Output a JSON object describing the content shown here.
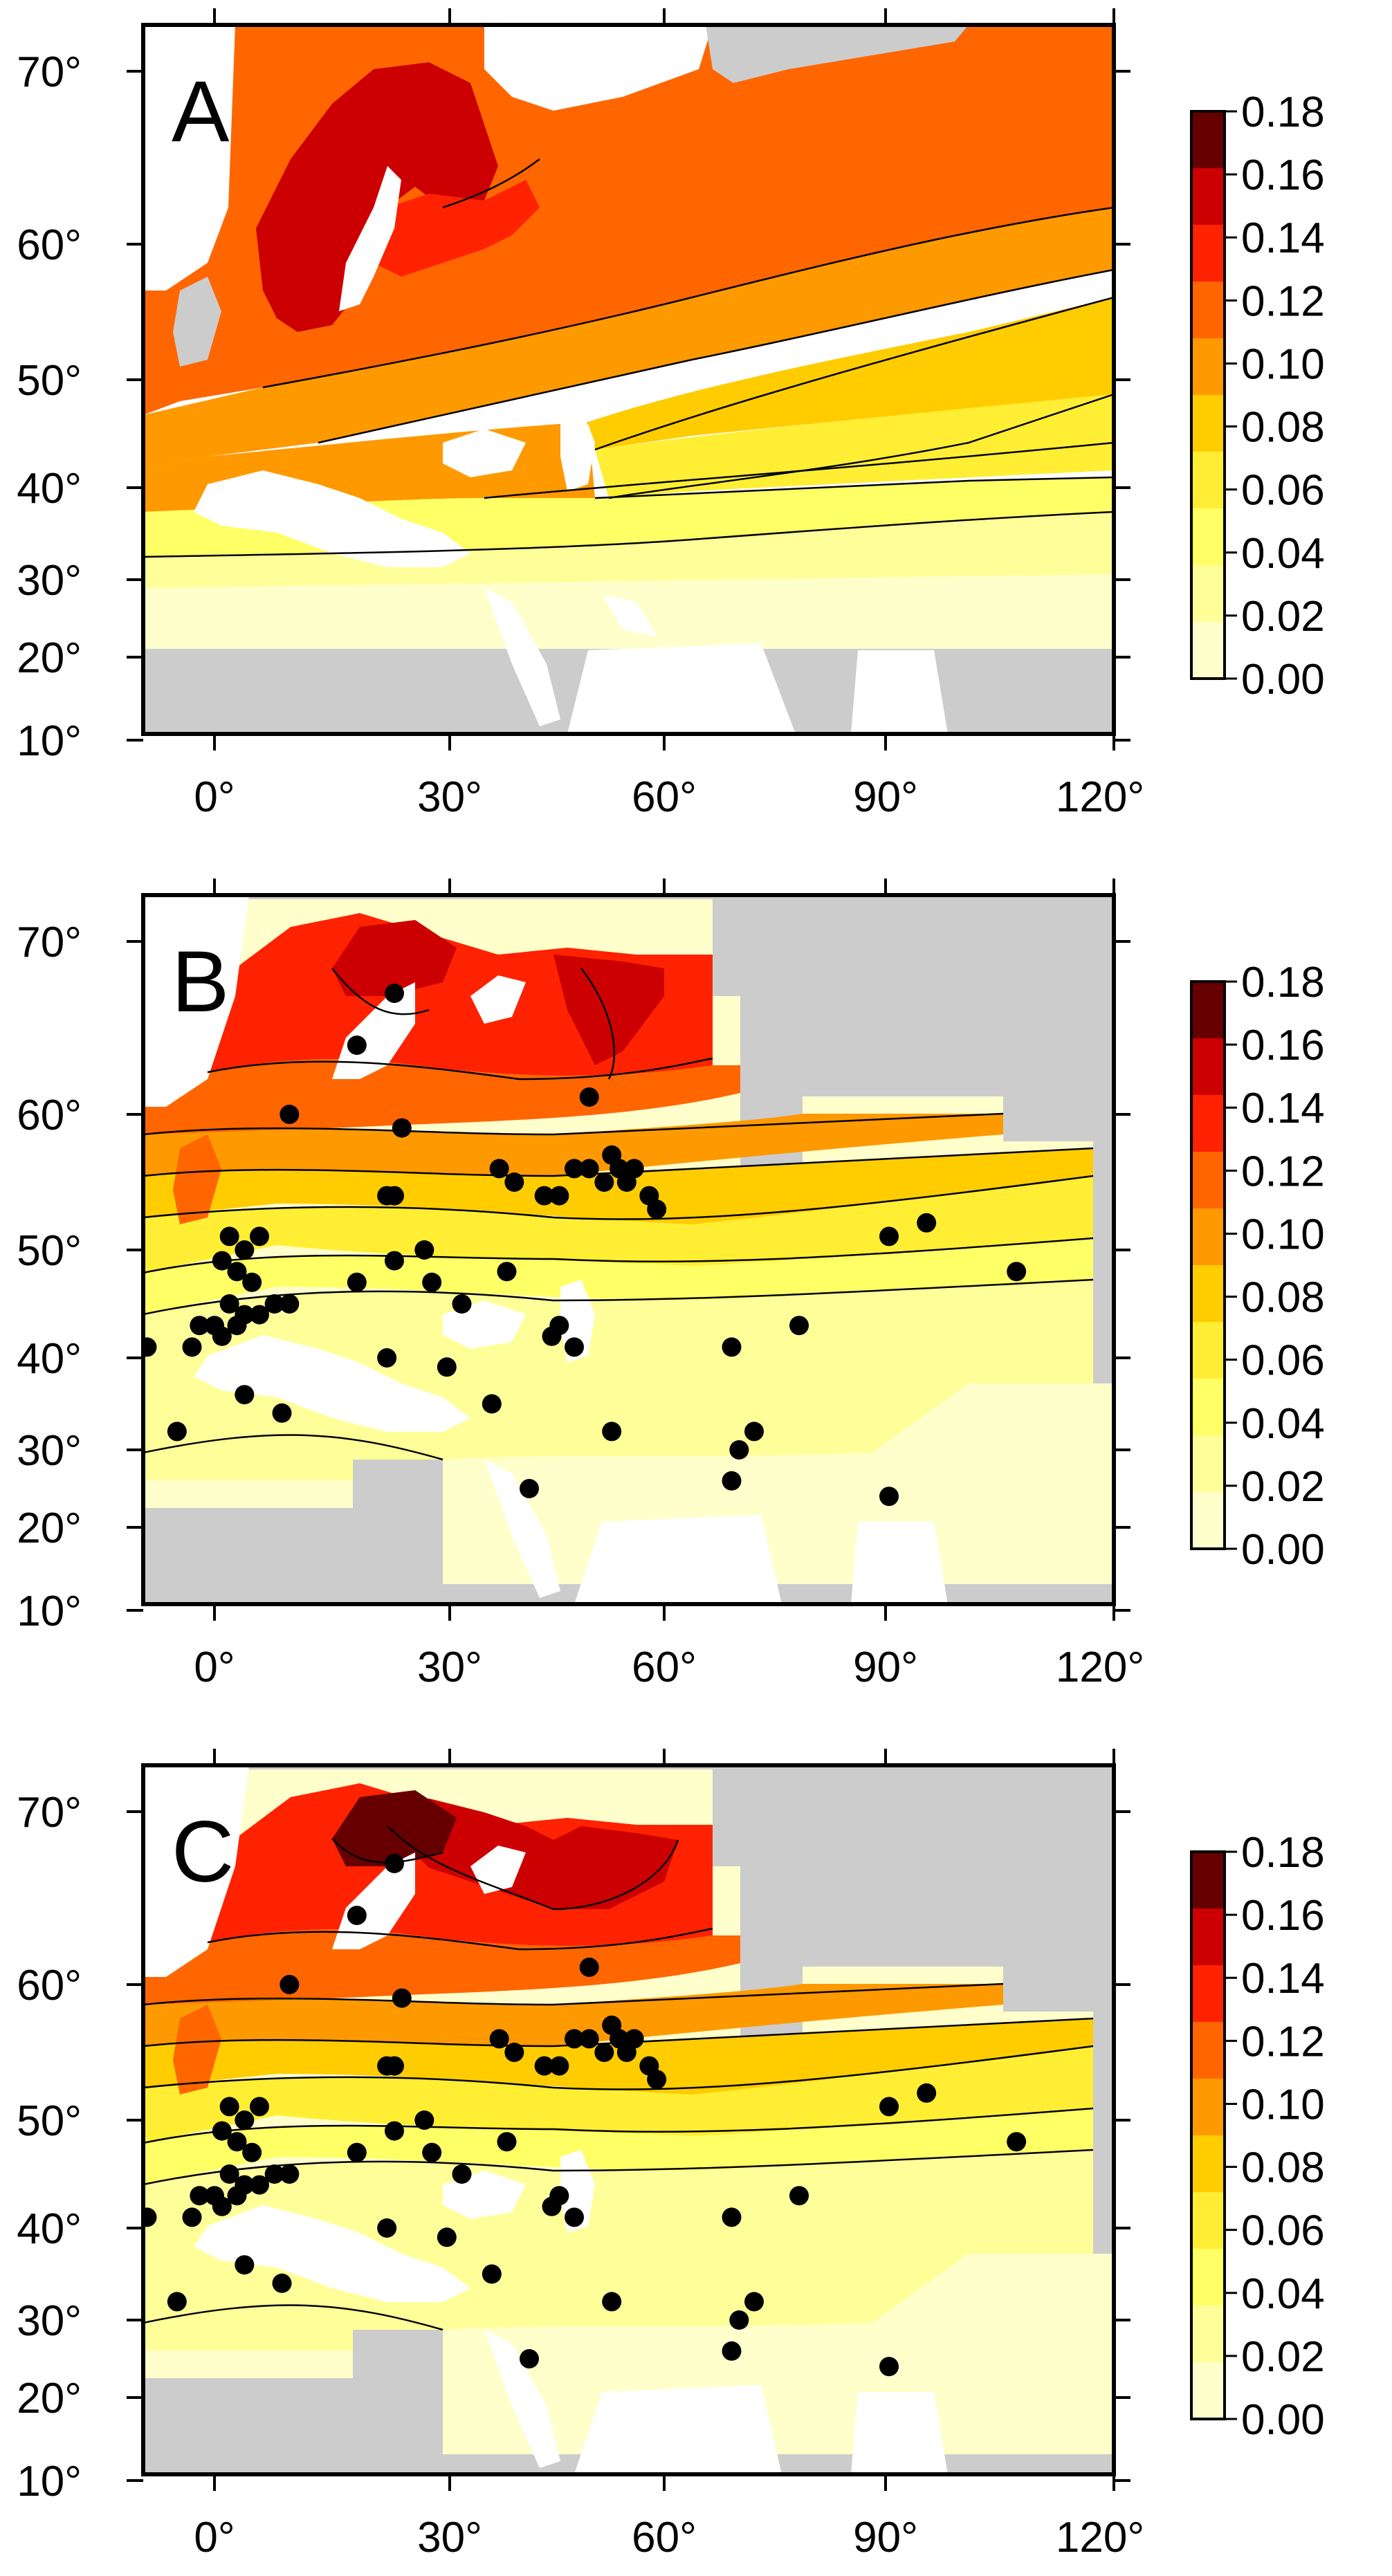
{
  "panels": [
    {
      "label": "A",
      "lat_ticks": [
        "70°",
        "60°",
        "50°",
        "40°",
        "30°",
        "20°",
        "10°"
      ],
      "lon_ticks": [
        "0°",
        "30°",
        "60°",
        "90°",
        "120°"
      ],
      "legend_ticks": [
        "0.18",
        "0.16",
        "0.14",
        "0.12",
        "0.10",
        "0.08",
        "0.06",
        "0.04",
        "0.02",
        "0.00"
      ],
      "sites": []
    },
    {
      "label": "B",
      "lat_ticks": [
        "70°",
        "60°",
        "50°",
        "40°",
        "30°",
        "20°",
        "10°"
      ],
      "lon_ticks": [
        "0°",
        "30°",
        "60°",
        "90°",
        "120°"
      ],
      "legend_ticks": [
        "0.18",
        "0.16",
        "0.14",
        "0.12",
        "0.10",
        "0.08",
        "0.06",
        "0.04",
        "0.02",
        "0.00"
      ],
      "sites": [
        {
          "lon": 24,
          "lat": 67
        },
        {
          "lon": 19,
          "lat": 64
        },
        {
          "lon": 10,
          "lat": 60
        },
        {
          "lon": 50,
          "lat": 61
        },
        {
          "lon": 25,
          "lat": 59
        },
        {
          "lon": 38,
          "lat": 56
        },
        {
          "lon": 40,
          "lat": 55
        },
        {
          "lon": 44,
          "lat": 54
        },
        {
          "lon": 46,
          "lat": 54
        },
        {
          "lon": 48,
          "lat": 56
        },
        {
          "lon": 50,
          "lat": 56
        },
        {
          "lon": 52,
          "lat": 55
        },
        {
          "lon": 53,
          "lat": 57
        },
        {
          "lon": 54,
          "lat": 56
        },
        {
          "lon": 55,
          "lat": 55
        },
        {
          "lon": 56,
          "lat": 56
        },
        {
          "lon": 58,
          "lat": 54
        },
        {
          "lon": 59,
          "lat": 53
        },
        {
          "lon": 24,
          "lat": 54
        },
        {
          "lon": 23,
          "lat": 54
        },
        {
          "lon": 2,
          "lat": 51
        },
        {
          "lon": 4,
          "lat": 50
        },
        {
          "lon": 6,
          "lat": 51
        },
        {
          "lon": 1,
          "lat": 49
        },
        {
          "lon": 3,
          "lat": 48
        },
        {
          "lon": 5,
          "lat": 47
        },
        {
          "lon": 2,
          "lat": 45
        },
        {
          "lon": 0,
          "lat": 43
        },
        {
          "lon": -2,
          "lat": 43
        },
        {
          "lon": -3,
          "lat": 41
        },
        {
          "lon": 1,
          "lat": 42
        },
        {
          "lon": 3,
          "lat": 43
        },
        {
          "lon": 6,
          "lat": 44
        },
        {
          "lon": 8,
          "lat": 45
        },
        {
          "lon": 10,
          "lat": 45
        },
        {
          "lon": 4,
          "lat": 44
        },
        {
          "lon": -9,
          "lat": 41
        },
        {
          "lon": 24,
          "lat": 49
        },
        {
          "lon": 28,
          "lat": 50
        },
        {
          "lon": 39,
          "lat": 48
        },
        {
          "lon": 19,
          "lat": 47
        },
        {
          "lon": 29,
          "lat": 47
        },
        {
          "lon": 33,
          "lat": 45
        },
        {
          "lon": 23,
          "lat": 40
        },
        {
          "lon": 31,
          "lat": 39
        },
        {
          "lon": 45,
          "lat": 42
        },
        {
          "lon": 46,
          "lat": 43
        },
        {
          "lon": 48,
          "lat": 41
        },
        {
          "lon": 37,
          "lat": 35
        },
        {
          "lon": 69,
          "lat": 41
        },
        {
          "lon": 78,
          "lat": 43
        },
        {
          "lon": 90,
          "lat": 51
        },
        {
          "lon": 95,
          "lat": 52
        },
        {
          "lon": 107,
          "lat": 48
        },
        {
          "lon": -5,
          "lat": 32
        },
        {
          "lon": 4,
          "lat": 36
        },
        {
          "lon": 9,
          "lat": 34
        },
        {
          "lon": 53,
          "lat": 32
        },
        {
          "lon": 42,
          "lat": 25
        },
        {
          "lon": 70,
          "lat": 30
        },
        {
          "lon": 72,
          "lat": 32
        },
        {
          "lon": 69,
          "lat": 26
        },
        {
          "lon": 90,
          "lat": 24
        }
      ]
    },
    {
      "label": "C",
      "lat_ticks": [
        "70°",
        "60°",
        "50°",
        "40°",
        "30°",
        "20°",
        "10°"
      ],
      "lon_ticks": [
        "0°",
        "30°",
        "60°",
        "90°",
        "120°"
      ],
      "legend_ticks": [
        "0.18",
        "0.16",
        "0.14",
        "0.12",
        "0.10",
        "0.08",
        "0.06",
        "0.04",
        "0.02",
        "0.00"
      ],
      "sites": [
        {
          "lon": 24,
          "lat": 67
        },
        {
          "lon": 19,
          "lat": 64
        },
        {
          "lon": 10,
          "lat": 60
        },
        {
          "lon": 50,
          "lat": 61
        },
        {
          "lon": 25,
          "lat": 59
        },
        {
          "lon": 38,
          "lat": 56
        },
        {
          "lon": 40,
          "lat": 55
        },
        {
          "lon": 44,
          "lat": 54
        },
        {
          "lon": 46,
          "lat": 54
        },
        {
          "lon": 48,
          "lat": 56
        },
        {
          "lon": 50,
          "lat": 56
        },
        {
          "lon": 52,
          "lat": 55
        },
        {
          "lon": 53,
          "lat": 57
        },
        {
          "lon": 54,
          "lat": 56
        },
        {
          "lon": 55,
          "lat": 55
        },
        {
          "lon": 56,
          "lat": 56
        },
        {
          "lon": 58,
          "lat": 54
        },
        {
          "lon": 59,
          "lat": 53
        },
        {
          "lon": 24,
          "lat": 54
        },
        {
          "lon": 23,
          "lat": 54
        },
        {
          "lon": 2,
          "lat": 51
        },
        {
          "lon": 4,
          "lat": 50
        },
        {
          "lon": 6,
          "lat": 51
        },
        {
          "lon": 1,
          "lat": 49
        },
        {
          "lon": 3,
          "lat": 48
        },
        {
          "lon": 5,
          "lat": 47
        },
        {
          "lon": 2,
          "lat": 45
        },
        {
          "lon": 0,
          "lat": 43
        },
        {
          "lon": -2,
          "lat": 43
        },
        {
          "lon": -3,
          "lat": 41
        },
        {
          "lon": 1,
          "lat": 42
        },
        {
          "lon": 3,
          "lat": 43
        },
        {
          "lon": 6,
          "lat": 44
        },
        {
          "lon": 8,
          "lat": 45
        },
        {
          "lon": 10,
          "lat": 45
        },
        {
          "lon": 4,
          "lat": 44
        },
        {
          "lon": -9,
          "lat": 41
        },
        {
          "lon": 24,
          "lat": 49
        },
        {
          "lon": 28,
          "lat": 50
        },
        {
          "lon": 39,
          "lat": 48
        },
        {
          "lon": 19,
          "lat": 47
        },
        {
          "lon": 29,
          "lat": 47
        },
        {
          "lon": 33,
          "lat": 45
        },
        {
          "lon": 23,
          "lat": 40
        },
        {
          "lon": 31,
          "lat": 39
        },
        {
          "lon": 45,
          "lat": 42
        },
        {
          "lon": 46,
          "lat": 43
        },
        {
          "lon": 48,
          "lat": 41
        },
        {
          "lon": 37,
          "lat": 35
        },
        {
          "lon": 69,
          "lat": 41
        },
        {
          "lon": 78,
          "lat": 43
        },
        {
          "lon": 90,
          "lat": 51
        },
        {
          "lon": 95,
          "lat": 52
        },
        {
          "lon": 107,
          "lat": 48
        },
        {
          "lon": -5,
          "lat": 32
        },
        {
          "lon": 4,
          "lat": 36
        },
        {
          "lon": 9,
          "lat": 34
        },
        {
          "lon": 53,
          "lat": 32
        },
        {
          "lon": 42,
          "lat": 25
        },
        {
          "lon": 70,
          "lat": 30
        },
        {
          "lon": 72,
          "lat": 32
        },
        {
          "lon": 69,
          "lat": 26
        },
        {
          "lon": 90,
          "lat": 24
        }
      ]
    }
  ],
  "colors": {
    "scale": [
      "#ffffcc",
      "#ffff99",
      "#ffff66",
      "#ffee33",
      "#ffcc00",
      "#ff9900",
      "#ff6600",
      "#ff2200",
      "#cc0000",
      "#660000"
    ],
    "nodata": "#cccccc",
    "water": "#ffffff",
    "frame": "#000000",
    "site": "#000000"
  }
}
